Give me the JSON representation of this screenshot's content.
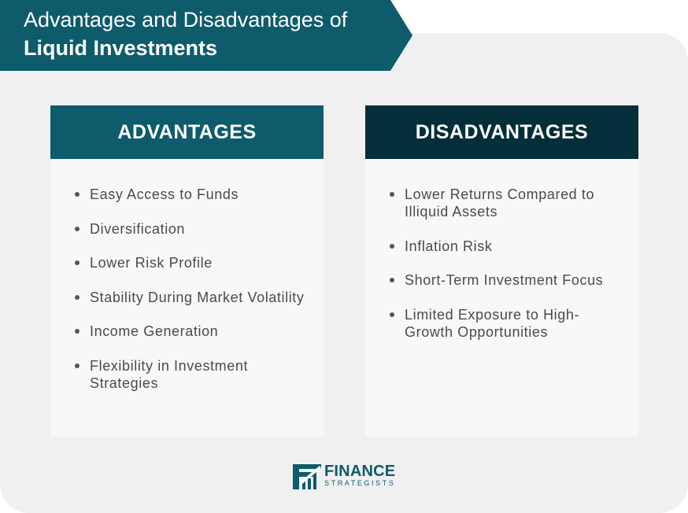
{
  "title": {
    "line1": "Advantages and Disadvantages of",
    "line2": "Liquid Investments"
  },
  "advantages": {
    "heading": "ADVANTAGES",
    "items": [
      "Easy Access to Funds",
      "Diversification",
      "Lower Risk Profile",
      "Stability During Market Volatility",
      "Income Generation",
      "Flexibility in Investment Strategies"
    ]
  },
  "disadvantages": {
    "heading": "DISADVANTAGES",
    "items": [
      "Lower Returns Compared to Illiquid Assets",
      "Inflation Risk",
      "Short-Term Investment Focus",
      "Limited Exposure to High-Growth Opportunities"
    ]
  },
  "logo": {
    "word1": "FINANCE",
    "word2": "STRATEGISTS",
    "icon": "finance-strategists-logo-icon"
  },
  "colors": {
    "teal": "#0e5b6c",
    "dark_teal": "#042e39",
    "panel_bg": "#f0f0f0",
    "card_bg": "#f7f8fa",
    "text": "#4a4a4a"
  }
}
